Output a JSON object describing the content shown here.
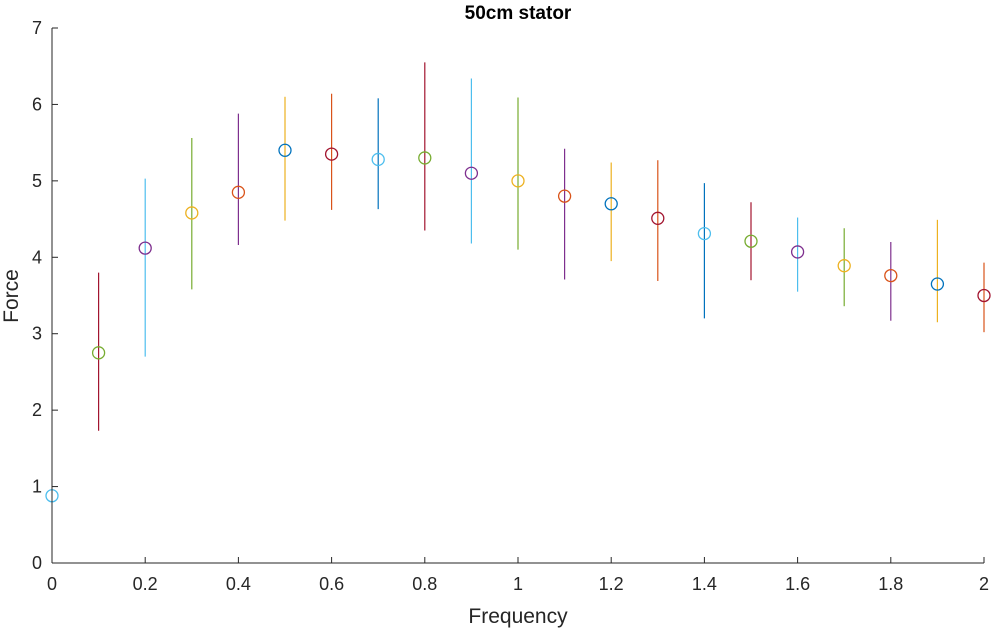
{
  "chart_data": {
    "type": "scatter",
    "title": "50cm stator",
    "xlabel": "Frequency",
    "ylabel": "Force",
    "xlim": [
      0,
      2
    ],
    "ylim": [
      0,
      7
    ],
    "xticks": [
      "0",
      "0.2",
      "0.4",
      "0.6",
      "0.8",
      "1",
      "1.2",
      "1.4",
      "1.6",
      "1.8",
      "2"
    ],
    "yticks": [
      "0",
      "1",
      "2",
      "3",
      "4",
      "5",
      "6",
      "7"
    ],
    "grid": false,
    "marker": "open-circle with vertical error bar",
    "points": [
      {
        "x": 0.0,
        "y": 0.88,
        "lower": 0.88,
        "upper": 0.88,
        "color": "#4DBEEE"
      },
      {
        "x": 0.1,
        "y": 2.75,
        "lower": 1.73,
        "upper": 3.8,
        "color": "#77AC30",
        "bar_color": "#A2142F"
      },
      {
        "x": 0.2,
        "y": 4.12,
        "lower": 2.7,
        "upper": 5.03,
        "color": "#7E2F8E",
        "bar_color": "#4DBEEE"
      },
      {
        "x": 0.3,
        "y": 4.58,
        "lower": 3.58,
        "upper": 5.56,
        "color": "#EDB120",
        "bar_color": "#77AC30"
      },
      {
        "x": 0.4,
        "y": 4.85,
        "lower": 4.16,
        "upper": 5.88,
        "color": "#D95319",
        "bar_color": "#7E2F8E"
      },
      {
        "x": 0.5,
        "y": 5.4,
        "lower": 4.48,
        "upper": 6.1,
        "color": "#0072BD",
        "bar_color": "#EDB120"
      },
      {
        "x": 0.6,
        "y": 5.35,
        "lower": 4.62,
        "upper": 6.14,
        "color": "#A2142F",
        "bar_color": "#D95319"
      },
      {
        "x": 0.7,
        "y": 5.28,
        "lower": 4.63,
        "upper": 6.08,
        "color": "#4DBEEE",
        "bar_color": "#0072BD"
      },
      {
        "x": 0.8,
        "y": 5.3,
        "lower": 4.35,
        "upper": 6.55,
        "color": "#77AC30",
        "bar_color": "#A2142F"
      },
      {
        "x": 0.9,
        "y": 5.1,
        "lower": 4.18,
        "upper": 6.34,
        "color": "#7E2F8E",
        "bar_color": "#4DBEEE"
      },
      {
        "x": 1.0,
        "y": 5.0,
        "lower": 4.1,
        "upper": 6.09,
        "color": "#EDB120",
        "bar_color": "#77AC30"
      },
      {
        "x": 1.1,
        "y": 4.8,
        "lower": 3.71,
        "upper": 5.42,
        "color": "#D95319",
        "bar_color": "#7E2F8E"
      },
      {
        "x": 1.2,
        "y": 4.7,
        "lower": 3.95,
        "upper": 5.24,
        "color": "#0072BD",
        "bar_color": "#EDB120"
      },
      {
        "x": 1.3,
        "y": 4.51,
        "lower": 3.69,
        "upper": 5.27,
        "color": "#A2142F",
        "bar_color": "#D95319"
      },
      {
        "x": 1.4,
        "y": 4.31,
        "lower": 3.2,
        "upper": 4.97,
        "color": "#4DBEEE",
        "bar_color": "#0072BD"
      },
      {
        "x": 1.5,
        "y": 4.21,
        "lower": 3.7,
        "upper": 4.72,
        "color": "#77AC30",
        "bar_color": "#A2142F"
      },
      {
        "x": 1.6,
        "y": 4.07,
        "lower": 3.55,
        "upper": 4.52,
        "color": "#7E2F8E",
        "bar_color": "#4DBEEE"
      },
      {
        "x": 1.7,
        "y": 3.89,
        "lower": 3.36,
        "upper": 4.38,
        "color": "#EDB120",
        "bar_color": "#77AC30"
      },
      {
        "x": 1.8,
        "y": 3.76,
        "lower": 3.17,
        "upper": 4.2,
        "color": "#D95319",
        "bar_color": "#7E2F8E"
      },
      {
        "x": 1.9,
        "y": 3.65,
        "lower": 3.15,
        "upper": 4.49,
        "color": "#0072BD",
        "bar_color": "#EDB120"
      },
      {
        "x": 2.0,
        "y": 3.5,
        "lower": 3.02,
        "upper": 3.93,
        "color": "#A2142F",
        "bar_color": "#D95319"
      }
    ],
    "axis_color": "#262626"
  }
}
